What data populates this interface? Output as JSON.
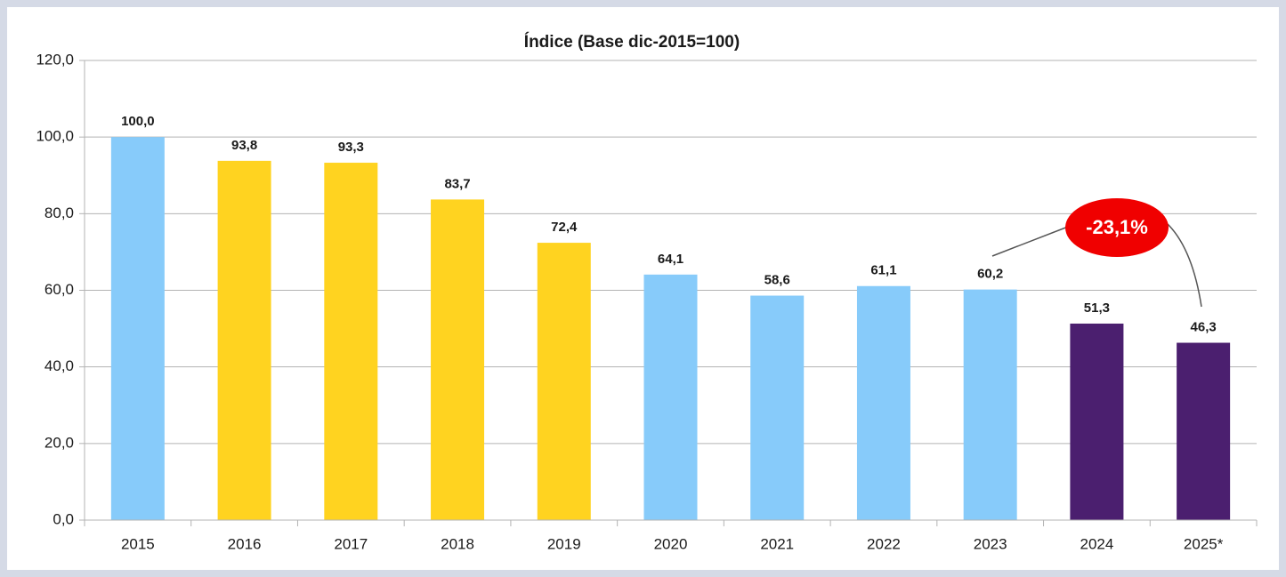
{
  "chart_data": {
    "type": "bar",
    "title": "Índice (Base dic-2015=100)",
    "categories": [
      "2015",
      "2016",
      "2017",
      "2018",
      "2019",
      "2020",
      "2021",
      "2022",
      "2023",
      "2024",
      "2025*"
    ],
    "values": [
      100.0,
      93.8,
      93.3,
      83.7,
      72.4,
      64.1,
      58.6,
      61.1,
      60.2,
      51.3,
      46.3
    ],
    "value_labels": [
      "100,0",
      "93,8",
      "93,3",
      "83,7",
      "72,4",
      "64,1",
      "58,6",
      "61,1",
      "60,2",
      "51,3",
      "46,3"
    ],
    "colors": [
      "#87cbfa",
      "#ffd320",
      "#ffd320",
      "#ffd320",
      "#ffd320",
      "#87cbfa",
      "#87cbfa",
      "#87cbfa",
      "#87cbfa",
      "#4b1f6f",
      "#4b1f6f"
    ],
    "ylim": [
      0,
      120
    ],
    "yticks": [
      {
        "value": 0,
        "label": "0,0"
      },
      {
        "value": 20,
        "label": "20,0"
      },
      {
        "value": 40,
        "label": "40,0"
      },
      {
        "value": 60,
        "label": "60,0"
      },
      {
        "value": 80,
        "label": "80,0"
      },
      {
        "value": 100,
        "label": "100,0"
      },
      {
        "value": 120,
        "label": "120,0"
      }
    ],
    "grid": true,
    "annotation": "-23,1%"
  }
}
